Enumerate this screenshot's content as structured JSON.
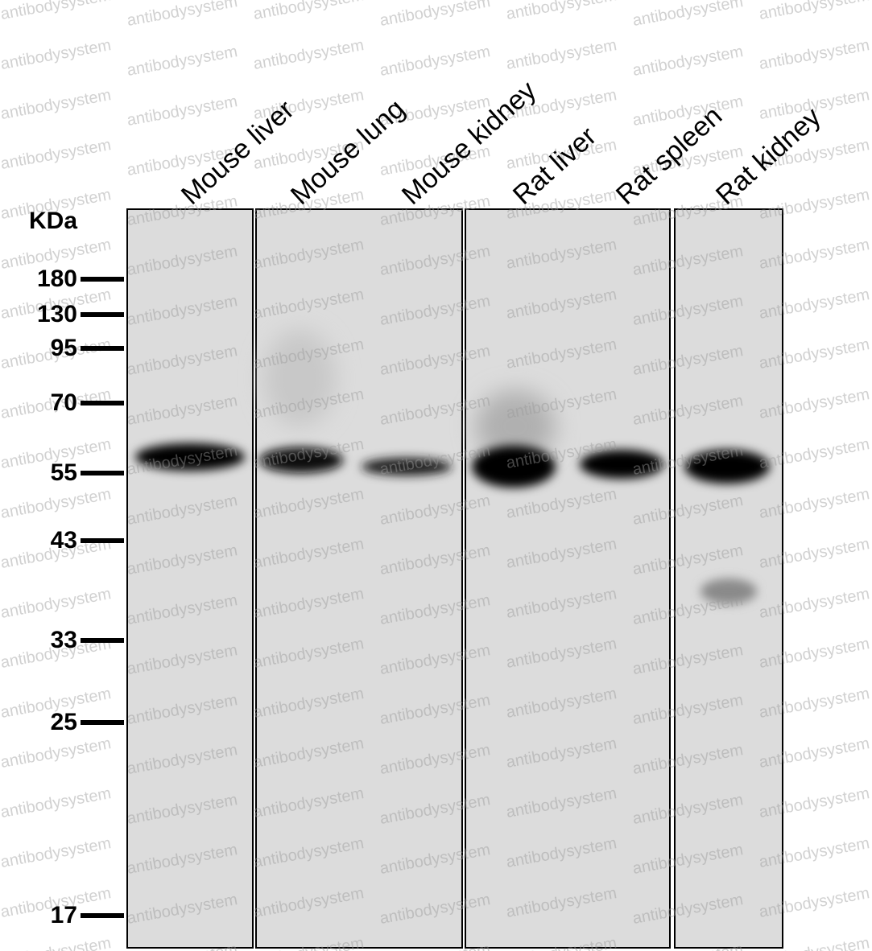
{
  "watermark": "antibodysystem",
  "unit_label": "KDa",
  "markers": [
    "180",
    "130",
    "95",
    "70",
    "55",
    "43",
    "33",
    "25",
    "17"
  ],
  "lanes": [
    "Mouse liver",
    "Mouse lung",
    "Mouse kidney",
    "Rat liver",
    "Rat spleen",
    "Rat kidney"
  ]
}
